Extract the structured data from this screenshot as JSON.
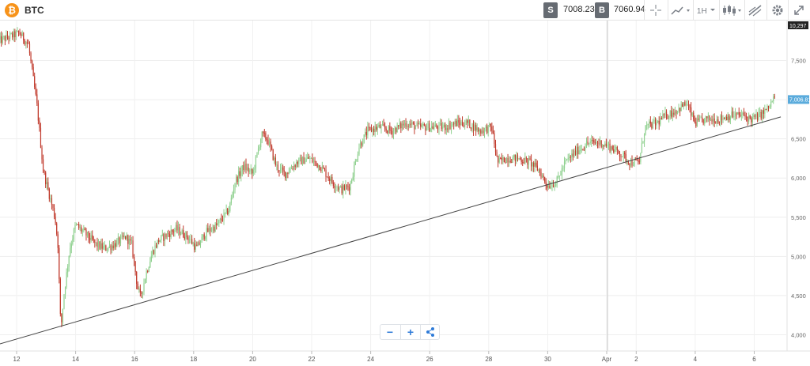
{
  "header": {
    "logo_glyph": "₿",
    "symbol": "BTC",
    "sell_tag": "S",
    "sell_price": "7008.23",
    "buy_tag": "B",
    "buy_price": "7060.94",
    "timeframe": "1H",
    "icons": [
      "crosshair-icon",
      "chart-type-icon",
      "timeframe-dropdown",
      "candles-icon",
      "drawing-tools-icon",
      "settings-icon",
      "fullscreen-icon"
    ]
  },
  "zoom_controls": {
    "minus": "−",
    "plus": "+",
    "share_icon": "share-icon"
  },
  "colors": {
    "up": "#8ed08e",
    "down": "#c0392b",
    "trend": "#444444",
    "accent": "#5aabdc"
  },
  "chart_data": {
    "type": "candlestick",
    "title": "",
    "xlabel": "",
    "ylabel": "",
    "ylim": [
      3800,
      10400
    ],
    "y_ticks": [
      {
        "value": 4000,
        "label": "4,000"
      },
      {
        "value": 4500,
        "label": "4,500"
      },
      {
        "value": 5000,
        "label": "5,000"
      },
      {
        "value": 5500,
        "label": "5,500"
      },
      {
        "value": 6000,
        "label": "6,000"
      },
      {
        "value": 6500,
        "label": "6,500"
      },
      {
        "value": 7000,
        "label": "7,000"
      },
      {
        "value": 7500,
        "label": "7,500"
      }
    ],
    "y_max_label": {
      "value": 10297,
      "label": "10,297"
    },
    "last_price": {
      "value": 7006.81,
      "label": "7,006.81"
    },
    "x_ticks": [
      {
        "day": 0,
        "label": "12"
      },
      {
        "day": 2,
        "label": "14"
      },
      {
        "day": 4,
        "label": "16"
      },
      {
        "day": 6,
        "label": "18"
      },
      {
        "day": 8,
        "label": "20"
      },
      {
        "day": 10,
        "label": "22"
      },
      {
        "day": 12,
        "label": "24"
      },
      {
        "day": 14,
        "label": "26"
      },
      {
        "day": 16,
        "label": "28"
      },
      {
        "day": 18,
        "label": "30"
      },
      {
        "day": 20,
        "label": "Apr"
      },
      {
        "day": 21,
        "label": "2"
      },
      {
        "day": 23,
        "label": "4"
      },
      {
        "day": 25,
        "label": "6"
      }
    ],
    "trendline": [
      {
        "day": -0.6,
        "price": 3880
      },
      {
        "day": 25.9,
        "price": 6780
      }
    ],
    "price_path": [
      [
        -0.6,
        7750
      ],
      [
        0.1,
        7850
      ],
      [
        0.4,
        7700
      ],
      [
        0.7,
        6900
      ],
      [
        0.9,
        6100
      ],
      [
        1.1,
        5800
      ],
      [
        1.3,
        5500
      ],
      [
        1.4,
        5150
      ],
      [
        1.5,
        4050
      ],
      [
        1.6,
        4500
      ],
      [
        1.8,
        5100
      ],
      [
        2.0,
        5400
      ],
      [
        2.3,
        5300
      ],
      [
        2.7,
        5150
      ],
      [
        3.0,
        5100
      ],
      [
        3.3,
        5150
      ],
      [
        3.7,
        5250
      ],
      [
        3.9,
        5150
      ],
      [
        4.1,
        4600
      ],
      [
        4.2,
        4480
      ],
      [
        4.4,
        4800
      ],
      [
        4.6,
        5050
      ],
      [
        4.8,
        5200
      ],
      [
        5.0,
        5250
      ],
      [
        5.4,
        5350
      ],
      [
        5.8,
        5250
      ],
      [
        6.1,
        5100
      ],
      [
        6.4,
        5300
      ],
      [
        6.8,
        5400
      ],
      [
        7.2,
        5600
      ],
      [
        7.4,
        5950
      ],
      [
        7.7,
        6150
      ],
      [
        8.0,
        6050
      ],
      [
        8.3,
        6550
      ],
      [
        8.5,
        6500
      ],
      [
        8.8,
        6150
      ],
      [
        9.1,
        6050
      ],
      [
        9.5,
        6200
      ],
      [
        9.9,
        6250
      ],
      [
        10.3,
        6150
      ],
      [
        10.7,
        5950
      ],
      [
        11.0,
        5850
      ],
      [
        11.3,
        5900
      ],
      [
        11.6,
        6400
      ],
      [
        11.9,
        6600
      ],
      [
        12.3,
        6650
      ],
      [
        12.7,
        6600
      ],
      [
        13.2,
        6700
      ],
      [
        13.6,
        6650
      ],
      [
        14.0,
        6650
      ],
      [
        14.5,
        6650
      ],
      [
        14.9,
        6700
      ],
      [
        15.3,
        6700
      ],
      [
        15.7,
        6600
      ],
      [
        16.1,
        6650
      ],
      [
        16.3,
        6200
      ],
      [
        16.6,
        6250
      ],
      [
        17.0,
        6250
      ],
      [
        17.4,
        6200
      ],
      [
        17.7,
        6100
      ],
      [
        18.0,
        5900
      ],
      [
        18.3,
        5950
      ],
      [
        18.6,
        6200
      ],
      [
        19.0,
        6350
      ],
      [
        19.4,
        6450
      ],
      [
        19.8,
        6450
      ],
      [
        20.1,
        6400
      ],
      [
        20.5,
        6300
      ],
      [
        20.8,
        6200
      ],
      [
        21.1,
        6200
      ],
      [
        21.3,
        6650
      ],
      [
        21.7,
        6700
      ],
      [
        22.0,
        6800
      ],
      [
        22.3,
        6850
      ],
      [
        22.7,
        6950
      ],
      [
        23.0,
        6700
      ],
      [
        23.4,
        6750
      ],
      [
        23.8,
        6750
      ],
      [
        24.2,
        6800
      ],
      [
        24.6,
        6800
      ],
      [
        24.9,
        6750
      ],
      [
        25.2,
        6800
      ],
      [
        25.5,
        6900
      ],
      [
        25.7,
        7050
      ]
    ]
  }
}
